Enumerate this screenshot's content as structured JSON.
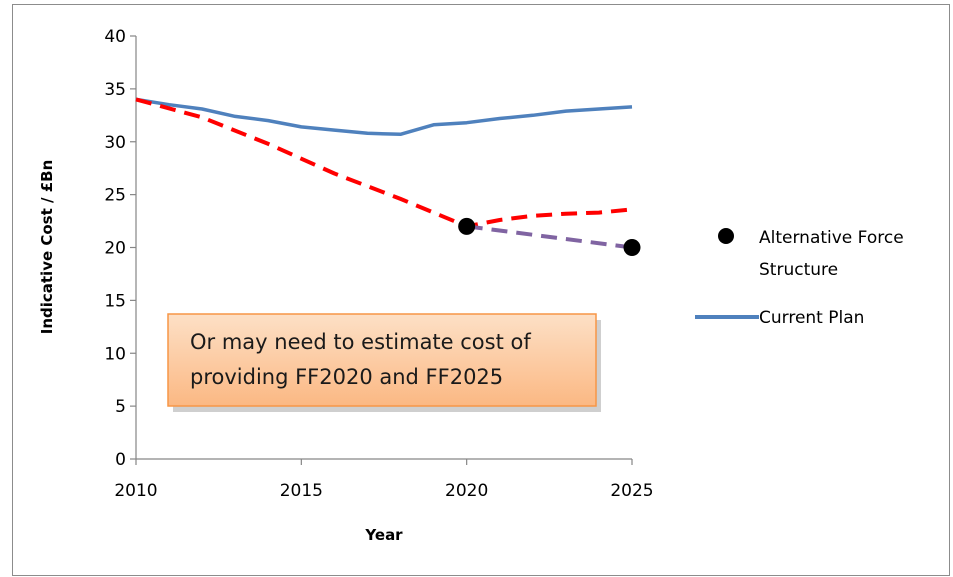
{
  "chart_data": {
    "type": "line",
    "title": "",
    "xlabel": "Year",
    "ylabel": "Indicative Cost / £Bn",
    "xlim": [
      2010,
      2025
    ],
    "ylim": [
      0,
      40
    ],
    "x_ticks": [
      2010,
      2015,
      2020,
      2025
    ],
    "y_ticks": [
      0,
      5,
      10,
      15,
      20,
      25,
      30,
      35,
      40
    ],
    "grid": false,
    "legend_position": "right",
    "series": [
      {
        "name": "Current Plan",
        "style": "solid",
        "color": "#4f81bd",
        "x": [
          2010,
          2011,
          2012,
          2013,
          2014,
          2015,
          2016,
          2017,
          2018,
          2019,
          2020,
          2021,
          2022,
          2023,
          2024,
          2025
        ],
        "y": [
          34.0,
          33.5,
          33.1,
          32.4,
          32.0,
          31.4,
          31.1,
          30.8,
          30.7,
          31.6,
          31.8,
          32.2,
          32.5,
          32.9,
          33.1,
          33.3
        ]
      },
      {
        "name": "",
        "style": "dashed",
        "color": "#ff0000",
        "x": [
          2010,
          2012,
          2014,
          2016,
          2018,
          2020,
          2021,
          2022,
          2023,
          2024,
          2025
        ],
        "y": [
          34.0,
          32.3,
          29.8,
          27.0,
          24.6,
          22.0,
          22.6,
          23.0,
          23.2,
          23.3,
          23.6
        ]
      },
      {
        "name": "",
        "style": "dashed",
        "color": "#8064a2",
        "x": [
          2020,
          2025
        ],
        "y": [
          22.0,
          20.0
        ]
      },
      {
        "name": "Alternative Force Structure",
        "style": "markers",
        "color": "#000000",
        "x": [
          2020,
          2025
        ],
        "y": [
          22.0,
          20.0
        ]
      }
    ],
    "annotations": [
      {
        "text_lines": [
          "Or may need to  estimate cost of",
          "providing  FF2020 and FF2025"
        ],
        "fill": "#fbc9a1",
        "border": "#f79646"
      }
    ]
  },
  "legend": {
    "alt_line1": "Alternative Force",
    "alt_line2": "Structure",
    "current": "Current Plan"
  }
}
